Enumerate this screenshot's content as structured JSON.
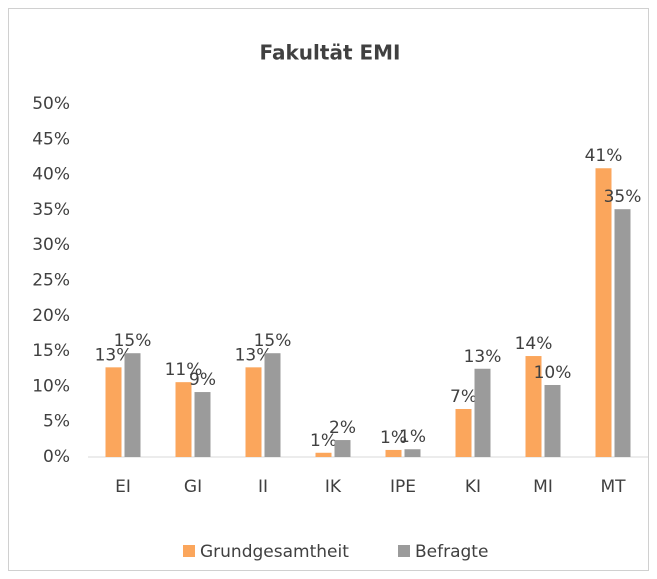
{
  "chart_data": {
    "type": "bar",
    "title": "Fakultät EMI",
    "categories": [
      "EI",
      "GI",
      "II",
      "IK",
      "IPE",
      "KI",
      "MI",
      "MT"
    ],
    "series": [
      {
        "name": "Grundgesamtheit",
        "color": "#fba65c",
        "values": [
          12.7,
          10.6,
          12.7,
          0.6,
          1.0,
          6.8,
          14.3,
          40.9
        ],
        "value_labels": [
          "13%",
          "11%",
          "13%",
          "1%",
          "1%",
          "7%",
          "14%",
          "41%"
        ]
      },
      {
        "name": "Befragte",
        "color": "#9b9b9b",
        "values": [
          14.7,
          9.2,
          14.7,
          2.4,
          1.1,
          12.5,
          10.2,
          35.1
        ],
        "value_labels": [
          "15%",
          "9%",
          "15%",
          "2%",
          "1%",
          "13%",
          "10%",
          "35%"
        ]
      }
    ],
    "ylim": [
      0,
      50
    ],
    "yticks": [
      {
        "value": 0,
        "label": "0%"
      },
      {
        "value": 5,
        "label": "5%"
      },
      {
        "value": 10,
        "label": "10%"
      },
      {
        "value": 15,
        "label": "15%"
      },
      {
        "value": 20,
        "label": "20%"
      },
      {
        "value": 25,
        "label": "25%"
      },
      {
        "value": 30,
        "label": "30%"
      },
      {
        "value": 35,
        "label": "35%"
      },
      {
        "value": 40,
        "label": "40%"
      },
      {
        "value": 45,
        "label": "45%"
      },
      {
        "value": 50,
        "label": "50%"
      }
    ],
    "grid": false,
    "legend": "bottom"
  }
}
